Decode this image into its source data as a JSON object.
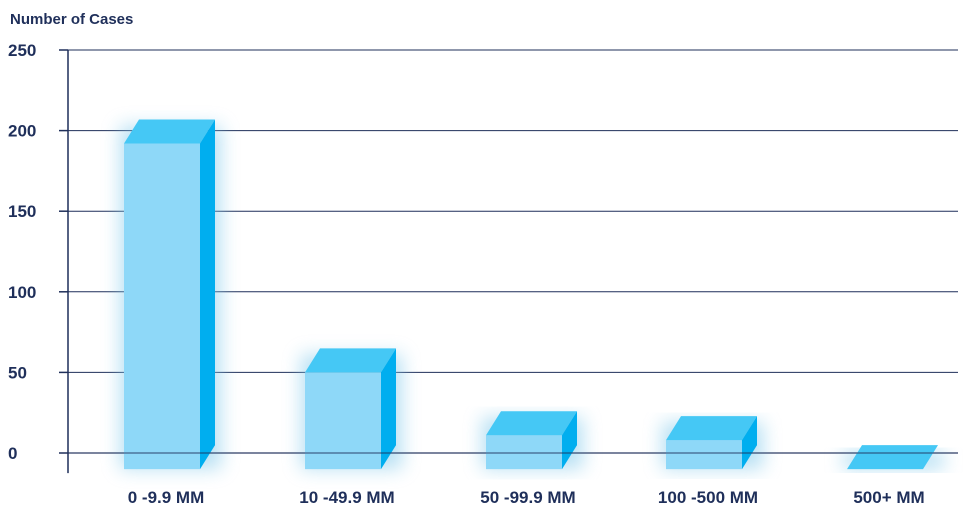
{
  "chart_data": {
    "type": "bar",
    "title": "",
    "ylabel": "Number of Cases",
    "xlabel": "",
    "categories": [
      "0 -9.9 MM",
      "10 -49.9 MM",
      "50 -99.9 MM",
      "100 -500 MM",
      "500+ MM"
    ],
    "values": [
      192,
      50,
      11,
      8,
      -10
    ],
    "ylim": [
      -10,
      250
    ],
    "yticks": [
      0,
      50,
      100,
      150,
      200,
      250
    ],
    "grid": true,
    "colors": {
      "front": "#8ed8f8",
      "top": "#45c8f5",
      "side": "#00aeef",
      "axis": "#1f2f5a",
      "text": "#1f2f5a"
    }
  }
}
